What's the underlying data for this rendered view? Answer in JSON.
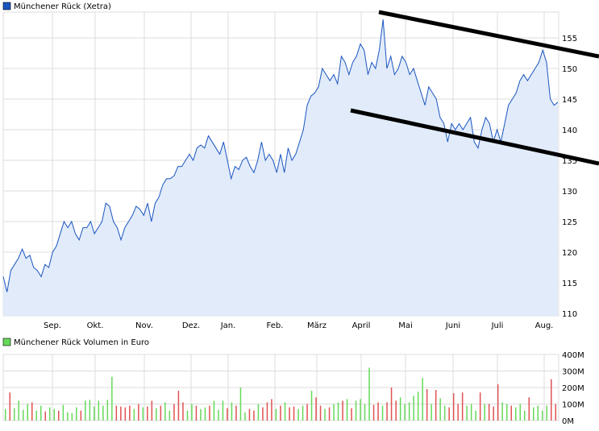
{
  "colors": {
    "price_line": "#1a55c0",
    "price_fill": "#e1ebfa",
    "grid": "#dcdcdc",
    "vol_up": "#66d95a",
    "vol_down": "#e05252",
    "legend_price": "#1a55c0",
    "legend_vol": "#66d95a"
  },
  "chart_data": [
    {
      "type": "area",
      "title": "Münchener Rück (Xetra)",
      "legend": "Münchener Rück (Xetra)",
      "legend_placement": "top-left",
      "ylim": [
        110,
        160
      ],
      "yticks": [
        110,
        115,
        120,
        125,
        130,
        135,
        140,
        145,
        150,
        155
      ],
      "ytick_labels": [
        "110",
        "115",
        "120",
        "125",
        "130",
        "135",
        "140",
        "145",
        "150",
        "155"
      ],
      "xtick_labels": [
        "Sep.",
        "Okt.",
        "Nov.",
        "Dez.",
        "Jan.",
        "Feb.",
        "März",
        "April",
        "Mai",
        "Juni",
        "Juli",
        "Aug."
      ],
      "grid": true,
      "values": [
        116,
        113.5,
        117,
        118,
        119,
        120.5,
        119,
        119.5,
        117.5,
        117,
        116,
        118,
        117.5,
        120,
        121,
        123,
        125,
        124,
        125,
        123,
        122,
        124,
        124,
        125,
        123,
        124,
        125,
        128,
        127.5,
        125,
        124,
        122,
        124,
        125,
        126,
        127.5,
        127,
        126,
        128,
        125,
        128,
        129,
        131,
        132,
        132,
        132.5,
        134,
        134,
        135,
        136,
        135,
        137,
        137.5,
        137,
        139,
        138,
        137,
        136,
        138,
        135,
        132,
        134,
        133.5,
        135,
        135.5,
        134,
        133,
        135,
        138,
        135,
        136,
        135,
        133,
        136,
        133,
        137,
        135,
        136,
        138,
        140,
        144,
        145.5,
        146,
        147,
        150,
        149,
        148,
        149,
        147.5,
        152,
        151,
        149,
        151,
        152,
        154,
        153,
        149,
        151,
        150,
        153,
        158,
        150,
        152,
        149,
        150,
        152,
        151,
        149,
        150,
        148,
        146,
        144,
        147,
        146,
        145,
        142,
        141,
        138,
        141,
        140,
        141,
        140,
        141,
        142,
        138,
        137,
        140,
        142,
        141,
        138,
        140,
        138,
        141,
        144,
        145,
        146,
        148,
        149,
        148,
        149,
        150,
        151,
        153,
        151,
        145,
        144,
        144.5
      ],
      "annotations": [
        {
          "type": "trendline",
          "from": "upper-channel"
        },
        {
          "type": "trendline",
          "from": "lower-channel"
        }
      ]
    },
    {
      "type": "bar",
      "legend": "Münchener Rück Volumen in Euro",
      "legend_placement": "top-left",
      "ylim": [
        0,
        400
      ],
      "unit": "M",
      "yticks": [
        0,
        100,
        200,
        300,
        400
      ],
      "ytick_labels": [
        "0M",
        "100M",
        "200M",
        "300M",
        "400M"
      ],
      "grid": true,
      "values": [
        70,
        170,
        75,
        120,
        65,
        100,
        110,
        60,
        90,
        55,
        80,
        70,
        60,
        95,
        50,
        45,
        80,
        60,
        120,
        125,
        85,
        120,
        90,
        125,
        265,
        90,
        85,
        80,
        90,
        70,
        100,
        80,
        85,
        120,
        75,
        90,
        110,
        60,
        100,
        180,
        110,
        60,
        100,
        90,
        70,
        80,
        90,
        120,
        65,
        120,
        75,
        110,
        90,
        200,
        50,
        70,
        60,
        100,
        80,
        110,
        130,
        70,
        90,
        110,
        80,
        85,
        70,
        90,
        100,
        180,
        140,
        90,
        70,
        80,
        100,
        110,
        120,
        130,
        75,
        120,
        130,
        100,
        320,
        95,
        110,
        90,
        110,
        200,
        120,
        140,
        100,
        110,
        150,
        175,
        258,
        190,
        100,
        185,
        135,
        90,
        80,
        165,
        100,
        170,
        90,
        100,
        60,
        170,
        100,
        100,
        85,
        220,
        110,
        100,
        90,
        80,
        100,
        60,
        140,
        80,
        90,
        60,
        90,
        250,
        100
      ],
      "up": [
        1,
        0,
        1,
        1,
        1,
        1,
        0,
        1,
        1,
        0,
        1,
        1,
        0,
        1,
        1,
        1,
        1,
        0,
        1,
        1,
        1,
        1,
        1,
        1,
        1,
        0,
        0,
        0,
        0,
        1,
        0,
        1,
        0,
        0,
        1,
        0,
        1,
        1,
        0,
        0,
        0,
        1,
        1,
        0,
        1,
        1,
        0,
        1,
        1,
        1,
        0,
        1,
        0,
        1,
        1,
        0,
        0,
        1,
        0,
        0,
        0,
        1,
        0,
        1,
        0,
        0,
        1,
        1,
        0,
        1,
        0,
        0,
        1,
        0,
        1,
        1,
        0,
        1,
        0,
        1,
        1,
        1,
        1,
        0,
        0,
        1,
        0,
        0,
        0,
        1,
        1,
        1,
        1,
        1,
        1,
        0,
        1,
        0,
        1,
        1,
        0,
        0,
        0,
        0,
        1,
        1,
        1,
        0,
        1,
        0,
        0,
        0,
        1,
        1,
        0,
        1,
        1,
        1,
        0,
        1,
        1,
        1,
        1,
        0,
        0
      ]
    }
  ]
}
